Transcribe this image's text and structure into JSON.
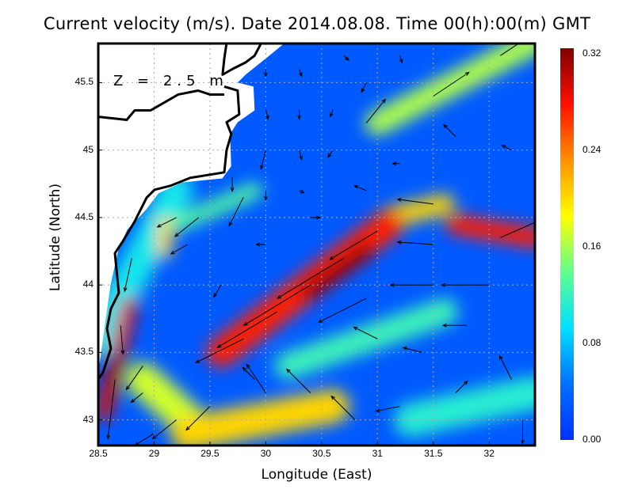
{
  "chart_data": {
    "type": "heatmap",
    "title": "Current velocity (m/s). Date 2014.08.08. Time 00(h):00(m) GMT",
    "annotation": "Z = 2.5 m",
    "xlabel": "Longitude (East)",
    "ylabel": "Latitude (North)",
    "xlim": [
      28.5,
      32.41
    ],
    "ylim": [
      42.81,
      45.79
    ],
    "xticks": [
      "28.5",
      "29",
      "29.5",
      "30",
      "30.5",
      "31",
      "31.5",
      "32"
    ],
    "yticks": [
      "43",
      "43.5",
      "44",
      "44.5",
      "45",
      "45.5"
    ],
    "grid": true,
    "colorbar": {
      "min": 0.0,
      "max": 0.32,
      "ticks": [
        "0.00",
        "0.08",
        "0.16",
        "0.24",
        "0.32"
      ],
      "colors": [
        "#0030ff",
        "#0070ff",
        "#00e0ff",
        "#60ff90",
        "#ffff00",
        "#ff9000",
        "#ff1000",
        "#800000"
      ],
      "placement": "right"
    },
    "background_speed": 0.03,
    "speed_features": [
      {
        "from": [
          28.5,
          43.6
        ],
        "to": [
          29.2,
          44.7
        ],
        "speed": 0.1,
        "width": 0.25
      },
      {
        "from": [
          30.2,
          43.4
        ],
        "to": [
          31.6,
          43.8
        ],
        "speed": 0.12,
        "width": 0.2
      },
      {
        "from": [
          31.3,
          43.0
        ],
        "to": [
          32.4,
          43.2
        ],
        "speed": 0.11,
        "width": 0.25
      },
      {
        "from": [
          29.2,
          44.45
        ],
        "to": [
          29.9,
          44.7
        ],
        "speed": 0.13,
        "width": 0.12
      },
      {
        "from": [
          31.0,
          45.2
        ],
        "to": [
          32.4,
          45.8
        ],
        "speed": 0.16,
        "width": 0.18
      },
      {
        "from": [
          28.9,
          43.3
        ],
        "to": [
          29.3,
          43.0
        ],
        "speed": 0.17,
        "width": 0.25
      },
      {
        "from": [
          29.3,
          42.9
        ],
        "to": [
          30.6,
          43.1
        ],
        "speed": 0.2,
        "width": 0.25
      },
      {
        "from": [
          29.1,
          44.25
        ],
        "to": [
          29.1,
          44.45
        ],
        "speed": 0.2,
        "width": 0.1
      },
      {
        "from": [
          31.1,
          44.5
        ],
        "to": [
          31.6,
          44.6
        ],
        "speed": 0.2,
        "width": 0.15
      },
      {
        "from": [
          29.6,
          43.5
        ],
        "to": [
          31.1,
          44.45
        ],
        "speed": 0.27,
        "width": 0.22
      },
      {
        "from": [
          30.4,
          43.95
        ],
        "to": [
          30.9,
          44.25
        ],
        "speed": 0.31,
        "width": 0.12
      },
      {
        "from": [
          31.7,
          44.45
        ],
        "to": [
          32.41,
          44.35
        ],
        "speed": 0.27,
        "width": 0.15
      },
      {
        "from": [
          28.55,
          43.05
        ],
        "to": [
          28.78,
          43.85
        ],
        "speed": 0.29,
        "width": 0.12
      },
      {
        "from": [
          28.62,
          43.3
        ],
        "to": [
          28.66,
          43.5
        ],
        "speed": 0.32,
        "width": 0.06
      }
    ],
    "land": [
      [
        28.5,
        45.794
      ],
      [
        30.17,
        45.794
      ],
      [
        29.996,
        45.676
      ],
      [
        29.819,
        45.559
      ],
      [
        29.748,
        45.5
      ],
      [
        29.89,
        45.471
      ],
      [
        29.9,
        45.294
      ],
      [
        29.748,
        45.206
      ],
      [
        29.68,
        45.118
      ],
      [
        29.69,
        44.88
      ],
      [
        29.61,
        44.79
      ],
      [
        29.25,
        44.76
      ],
      [
        29.04,
        44.68
      ],
      [
        28.93,
        44.56
      ],
      [
        28.76,
        44.41
      ],
      [
        28.68,
        44.26
      ],
      [
        28.61,
        44.0
      ],
      [
        28.56,
        43.71
      ],
      [
        28.5,
        43.35
      ]
    ],
    "coastline": [
      [
        29.649,
        45.794
      ],
      [
        29.628,
        45.676
      ],
      [
        29.613,
        45.559
      ],
      [
        29.713,
        45.606
      ],
      [
        29.82,
        45.65
      ],
      [
        29.9,
        45.7
      ],
      [
        29.96,
        45.794
      ]
    ],
    "coastline2": [
      [
        29.628,
        45.471
      ],
      [
        29.748,
        45.441
      ],
      [
        29.762,
        45.265
      ],
      [
        29.649,
        45.206
      ],
      [
        29.691,
        45.118
      ],
      [
        29.649,
        45.0
      ],
      [
        29.628,
        44.835
      ],
      [
        29.323,
        44.794
      ],
      [
        29.145,
        44.735
      ],
      [
        29.004,
        44.706
      ],
      [
        28.933,
        44.647
      ],
      [
        28.826,
        44.471
      ],
      [
        28.72,
        44.324
      ],
      [
        28.649,
        44.235
      ],
      [
        28.684,
        43.941
      ],
      [
        28.613,
        43.824
      ],
      [
        28.578,
        43.676
      ],
      [
        28.613,
        43.529
      ],
      [
        28.543,
        43.353
      ],
      [
        28.5,
        43.3
      ]
    ],
    "coastline3": [
      [
        28.5,
        45.247
      ],
      [
        28.755,
        45.224
      ],
      [
        28.826,
        45.294
      ],
      [
        28.968,
        45.294
      ],
      [
        29.216,
        45.412
      ],
      [
        29.394,
        45.441
      ],
      [
        29.5,
        45.412
      ],
      [
        29.628,
        45.412
      ]
    ],
    "vectors": [
      [
        30.0,
        45.6,
        0,
        -0.03
      ],
      [
        30.3,
        45.6,
        0.01,
        -0.03
      ],
      [
        30.7,
        45.7,
        0.02,
        -0.02
      ],
      [
        31.2,
        45.7,
        0.01,
        -0.03
      ],
      [
        30.0,
        45.3,
        0.01,
        -0.04
      ],
      [
        30.3,
        45.3,
        0,
        -0.04
      ],
      [
        30.6,
        45.3,
        -0.01,
        -0.03
      ],
      [
        30.9,
        45.5,
        -0.02,
        -0.04
      ],
      [
        30.0,
        45.0,
        -0.02,
        -0.08
      ],
      [
        30.3,
        45.0,
        0.01,
        -0.04
      ],
      [
        30.6,
        45.0,
        -0.02,
        -0.03
      ],
      [
        29.7,
        44.8,
        0,
        -0.06
      ],
      [
        29.8,
        44.65,
        -0.06,
        -0.12
      ],
      [
        30.0,
        44.7,
        0,
        -0.04
      ],
      [
        30.3,
        44.7,
        0.02,
        -0.01
      ],
      [
        29.2,
        44.5,
        -0.08,
        -0.04
      ],
      [
        29.4,
        44.5,
        -0.1,
        -0.08
      ],
      [
        29.3,
        44.3,
        -0.07,
        -0.04
      ],
      [
        28.8,
        44.2,
        -0.03,
        -0.14
      ],
      [
        28.7,
        43.7,
        0.01,
        -0.12
      ],
      [
        28.9,
        43.4,
        -0.07,
        -0.1
      ],
      [
        28.9,
        43.2,
        -0.05,
        -0.04
      ],
      [
        28.65,
        43.3,
        -0.03,
        -0.25
      ],
      [
        30.4,
        44.0,
        -0.28,
        -0.17
      ],
      [
        30.7,
        44.2,
        -0.28,
        -0.17
      ],
      [
        30.1,
        43.8,
        -0.25,
        -0.15
      ],
      [
        29.8,
        43.6,
        -0.2,
        -0.1
      ],
      [
        31.0,
        44.4,
        -0.2,
        -0.12
      ],
      [
        30.9,
        43.9,
        -0.2,
        -0.1
      ],
      [
        31.5,
        44.6,
        -0.15,
        0.02
      ],
      [
        32.1,
        44.35,
        0.18,
        0.08
      ],
      [
        31.5,
        44.3,
        -0.15,
        0.01
      ],
      [
        31.5,
        44.0,
        -0.18,
        0
      ],
      [
        32.0,
        44.0,
        -0.2,
        0
      ],
      [
        31.8,
        43.7,
        -0.1,
        0
      ],
      [
        31.0,
        43.6,
        -0.1,
        0.05
      ],
      [
        30.4,
        43.2,
        -0.1,
        0.1
      ],
      [
        30.0,
        43.2,
        -0.08,
        0.12
      ],
      [
        30.8,
        43.0,
        -0.1,
        0.1
      ],
      [
        31.2,
        43.1,
        -0.1,
        -0.02
      ],
      [
        31.7,
        43.2,
        0.05,
        0.05
      ],
      [
        32.2,
        43.3,
        -0.05,
        0.1
      ],
      [
        29.5,
        43.1,
        -0.1,
        -0.1
      ],
      [
        29.2,
        43.0,
        -0.1,
        -0.08
      ],
      [
        29.0,
        42.9,
        -0.08,
        -0.05
      ],
      [
        30.9,
        45.2,
        0.08,
        0.1
      ],
      [
        31.5,
        45.4,
        0.15,
        0.1
      ],
      [
        32.1,
        45.7,
        0.15,
        0.1
      ],
      [
        31.7,
        45.1,
        -0.05,
        0.05
      ],
      [
        32.2,
        45.0,
        -0.04,
        0.02
      ],
      [
        31.2,
        44.9,
        -0.03,
        0
      ],
      [
        30.9,
        44.7,
        -0.05,
        0.02
      ],
      [
        31.4,
        43.5,
        -0.08,
        0.02
      ],
      [
        32.3,
        43.0,
        0,
        -0.1
      ],
      [
        29.6,
        44.0,
        -0.03,
        -0.05
      ],
      [
        30.0,
        44.3,
        -0.04,
        0
      ],
      [
        30.4,
        44.5,
        0.04,
        0
      ],
      [
        29.9,
        43.3,
        -0.05,
        0.05
      ]
    ]
  }
}
